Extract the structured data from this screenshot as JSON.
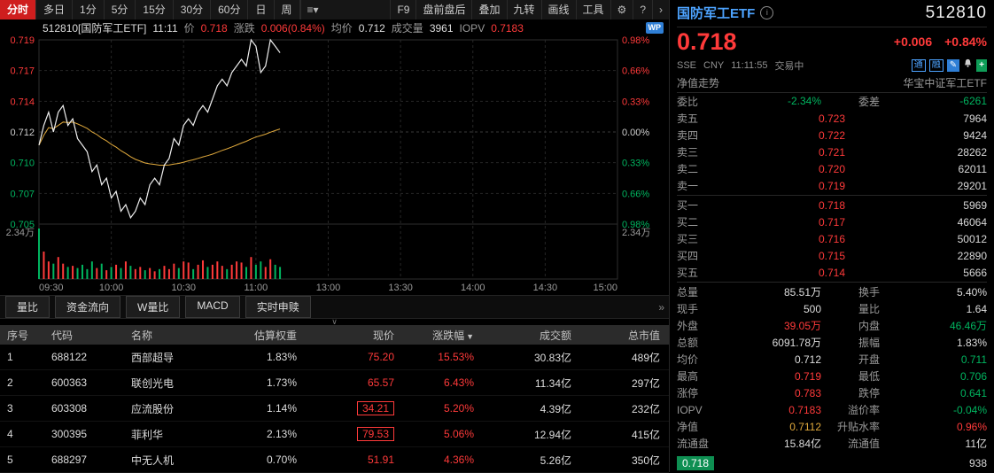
{
  "palette": {
    "up": "#ff3a3a",
    "down": "#00b45f",
    "flat": "#dddddd",
    "label": "#9a9a9a",
    "blue": "#4da3ff",
    "yellow": "#e0a93c",
    "tab_active_bg": "#cf1e1e",
    "tick_bg": "#0e8f52"
  },
  "toolbar": {
    "tabs": [
      {
        "label": "分时",
        "active": true
      },
      {
        "label": "多日",
        "active": false
      },
      {
        "label": "1分",
        "active": false
      },
      {
        "label": "5分",
        "active": false
      },
      {
        "label": "15分",
        "active": false
      },
      {
        "label": "30分",
        "active": false
      },
      {
        "label": "60分",
        "active": false
      },
      {
        "label": "日",
        "active": false
      },
      {
        "label": "周",
        "active": false
      }
    ],
    "menu_icon": "≡▾",
    "right_items": [
      "F9",
      "盘前盘后",
      "叠加",
      "九转",
      "画线",
      "工具"
    ],
    "gear_icon": "⚙",
    "help_icon": "?",
    "more_icon": "›"
  },
  "chart_header": {
    "code_name": "512810[国防军工ETF]",
    "time": "11:11",
    "price_label": "价",
    "price": "0.718",
    "change_label": "涨跌",
    "change": "0.006(0.84%)",
    "avg_label": "均价",
    "avg": "0.712",
    "volume_label": "成交量",
    "volume": "3961",
    "iopv_label": "IOPV",
    "iopv": "0.7183",
    "wp_badge": "WP"
  },
  "chart_data": {
    "type": "line",
    "title": "512810 国防军工ETF 分时走势",
    "prev_close": 0.712,
    "pct_range": 0.0098,
    "vol_max": 2.34,
    "vol_axis": "2.34万",
    "y_axis_left": [
      "0.719",
      "0.717",
      "0.714",
      "0.712",
      "0.710",
      "0.707",
      "0.705"
    ],
    "y_axis_right": [
      "0.98%",
      "0.66%",
      "0.33%",
      "0.00%",
      "0.33%",
      "0.66%",
      "0.98%"
    ],
    "x_labels": [
      "09:30",
      "10:00",
      "10:30",
      "11:00",
      "13:00",
      "13:30",
      "14:00",
      "14:30",
      "15:00"
    ],
    "session_minutes": 240,
    "minute_step": 2,
    "price": [
      0.711,
      0.7125,
      0.7135,
      0.712,
      0.7135,
      0.714,
      0.7125,
      0.713,
      0.7115,
      0.711,
      0.7105,
      0.709,
      0.7095,
      0.708,
      0.7085,
      0.707,
      0.7075,
      0.706,
      0.7065,
      0.7055,
      0.706,
      0.707,
      0.7065,
      0.708,
      0.7085,
      0.708,
      0.7095,
      0.71,
      0.7115,
      0.711,
      0.7125,
      0.713,
      0.7125,
      0.7135,
      0.714,
      0.7135,
      0.7145,
      0.7155,
      0.716,
      0.7155,
      0.7165,
      0.717,
      0.7175,
      0.717,
      0.719,
      0.7185,
      0.7165,
      0.717,
      0.719,
      0.7185,
      0.718
    ],
    "volume": [
      2.3,
      1.25,
      0.8,
      0.7,
      1.0,
      0.7,
      0.55,
      0.6,
      0.5,
      0.65,
      0.45,
      0.8,
      0.5,
      0.7,
      0.4,
      0.55,
      0.65,
      0.5,
      0.8,
      0.6,
      0.45,
      0.55,
      0.4,
      0.5,
      0.35,
      0.45,
      0.6,
      0.45,
      0.7,
      0.5,
      0.8,
      0.75,
      0.45,
      0.65,
      0.85,
      0.55,
      0.65,
      0.8,
      0.6,
      0.45,
      0.65,
      0.8,
      0.75,
      0.55,
      1.0,
      0.65,
      0.8,
      0.55,
      0.9,
      0.65,
      0.55
    ]
  },
  "subtabs": {
    "items": [
      "量比",
      "资金流向",
      "W量比",
      "MACD",
      "实时申赎"
    ],
    "collapse_icon": "»",
    "chevron": "∨"
  },
  "table": {
    "columns": [
      "序号",
      "代码",
      "名称",
      "估算权重",
      "现价",
      "涨跌幅",
      "成交额",
      "总市值"
    ],
    "sort_column": "涨跌幅",
    "sort_icon": "▼",
    "rows": [
      {
        "seq": "1",
        "code": "688122",
        "name": "西部超导",
        "weight": "1.83%",
        "price": "75.20",
        "boxed": false,
        "pct": "15.53%",
        "turnover": "30.83亿",
        "mcap": "489亿"
      },
      {
        "seq": "2",
        "code": "600363",
        "name": "联创光电",
        "weight": "1.73%",
        "price": "65.57",
        "boxed": false,
        "pct": "6.43%",
        "turnover": "11.34亿",
        "mcap": "297亿"
      },
      {
        "seq": "3",
        "code": "603308",
        "name": "应流股份",
        "weight": "1.14%",
        "price": "34.21",
        "boxed": true,
        "pct": "5.20%",
        "turnover": "4.39亿",
        "mcap": "232亿"
      },
      {
        "seq": "4",
        "code": "300395",
        "name": "菲利华",
        "weight": "2.13%",
        "price": "79.53",
        "boxed": true,
        "pct": "5.06%",
        "turnover": "12.94亿",
        "mcap": "415亿"
      },
      {
        "seq": "5",
        "code": "688297",
        "name": "中无人机",
        "weight": "0.70%",
        "price": "51.91",
        "boxed": false,
        "pct": "4.36%",
        "turnover": "5.26亿",
        "mcap": "350亿"
      }
    ]
  },
  "right": {
    "name": "国防军工ETF",
    "code": "512810",
    "price": "0.718",
    "change": "+0.006",
    "pct": "+0.84%",
    "exchange": "SSE",
    "currency": "CNY",
    "time": "11:11:55",
    "status": "交易中",
    "badges": [
      "通",
      "融"
    ],
    "pencil_icon": "✎",
    "plus_icon": "+",
    "nav_label": "净值走势",
    "fund_name": "华宝中证军工ETF",
    "weibi_label": "委比",
    "weibi": "-2.34%",
    "weicha_label": "委差",
    "weicha": "-6261",
    "asks": [
      {
        "label": "卖五",
        "price": "0.723",
        "vol": "7964"
      },
      {
        "label": "卖四",
        "price": "0.722",
        "vol": "9424"
      },
      {
        "label": "卖三",
        "price": "0.721",
        "vol": "28262"
      },
      {
        "label": "卖二",
        "price": "0.720",
        "vol": "62011"
      },
      {
        "label": "卖一",
        "price": "0.719",
        "vol": "29201"
      }
    ],
    "bids": [
      {
        "label": "买一",
        "price": "0.718",
        "vol": "5969"
      },
      {
        "label": "买二",
        "price": "0.717",
        "vol": "46064"
      },
      {
        "label": "买三",
        "price": "0.716",
        "vol": "50012"
      },
      {
        "label": "买四",
        "price": "0.715",
        "vol": "22890"
      },
      {
        "label": "买五",
        "price": "0.714",
        "vol": "5666"
      }
    ],
    "stats": [
      {
        "l1": "总量",
        "v1": "85.51万",
        "c1": "flat",
        "l2": "换手",
        "v2": "5.40%",
        "c2": "flat"
      },
      {
        "l1": "现手",
        "v1": "500",
        "c1": "flat",
        "l2": "量比",
        "v2": "1.64",
        "c2": "flat"
      },
      {
        "l1": "外盘",
        "v1": "39.05万",
        "c1": "up",
        "l2": "内盘",
        "v2": "46.46万",
        "c2": "down"
      },
      {
        "l1": "总额",
        "v1": "6091.78万",
        "c1": "flat",
        "l2": "振幅",
        "v2": "1.83%",
        "c2": "flat"
      },
      {
        "l1": "均价",
        "v1": "0.712",
        "c1": "flat",
        "l2": "开盘",
        "v2": "0.711",
        "c2": "down"
      },
      {
        "l1": "最高",
        "v1": "0.719",
        "c1": "up",
        "l2": "最低",
        "v2": "0.706",
        "c2": "down"
      },
      {
        "l1": "涨停",
        "v1": "0.783",
        "c1": "up",
        "l2": "跌停",
        "v2": "0.641",
        "c2": "down"
      },
      {
        "l1": "IOPV",
        "v1": "0.7183",
        "c1": "up",
        "l2": "溢价率",
        "v2": "-0.04%",
        "c2": "down"
      },
      {
        "l1": "净值",
        "v1": "0.7112",
        "c1": "yellow",
        "l2": "升贴水率",
        "v2": "0.96%",
        "c2": "up"
      },
      {
        "l1": "流通盘",
        "v1": "15.84亿",
        "c1": "flat",
        "l2": "流通值",
        "v2": "11亿",
        "c2": "flat"
      }
    ],
    "tick": {
      "price": "0.718",
      "vol": "938"
    }
  }
}
